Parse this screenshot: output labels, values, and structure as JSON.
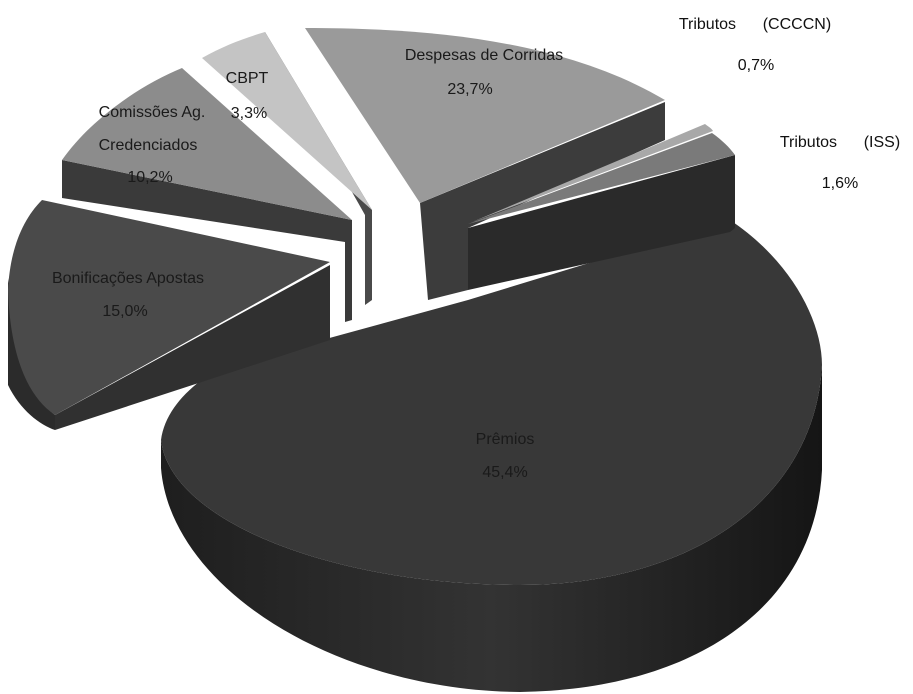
{
  "chart_data": {
    "type": "pie",
    "style": "3d-exploded",
    "slices": [
      {
        "label": "Prêmios",
        "value": 45.4,
        "display": "45,4%",
        "color": "#3a3a3a"
      },
      {
        "label": "Bonificações Apostas",
        "value": 15.0,
        "display": "15,0%",
        "color": "#4a4a4a"
      },
      {
        "label": "Comissões Ag. Credenciados",
        "value": 10.2,
        "display": "10,2%",
        "color": "#8c8c8c"
      },
      {
        "label": "CBPT",
        "value": 3.3,
        "display": "3,3%",
        "color": "#c8c8c8"
      },
      {
        "label": "Despesas de Corridas",
        "value": 23.7,
        "display": "23,7%",
        "color": "#9a9a9a"
      },
      {
        "label": "Tributos      (CCCCN)",
        "value": 0.7,
        "display": "0,7%",
        "color": "#a8a8a8"
      },
      {
        "label": "Tributos      (ISS)",
        "value": 1.6,
        "display": "1,6%",
        "color": "#7a7a7a"
      }
    ]
  }
}
